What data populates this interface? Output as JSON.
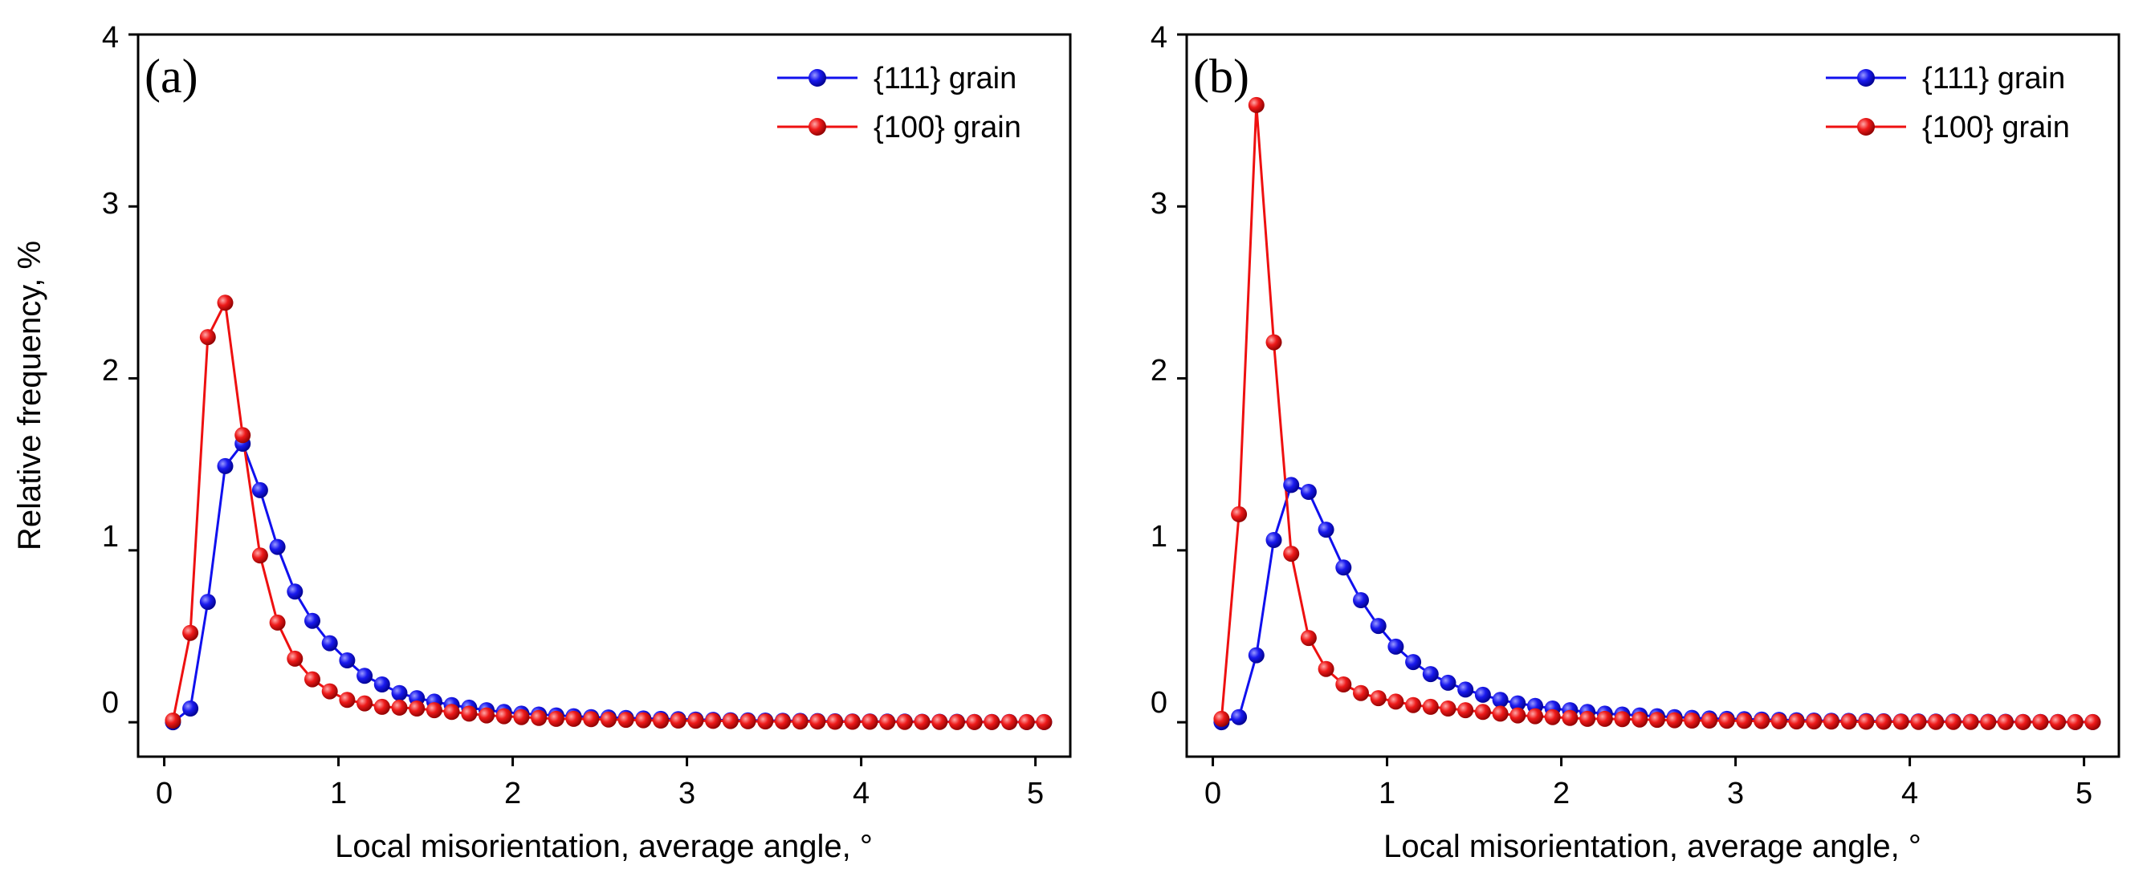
{
  "colors": {
    "series_111": "#1010ee",
    "series_100": "#ee1010",
    "axis": "#000000"
  },
  "chart_data": [
    {
      "type": "line",
      "panel_label": "(a)",
      "xlabel": "Local misorientation, average angle, °",
      "ylabel": "Relative frequency, %",
      "xlim": [
        -0.15,
        5.2
      ],
      "ylim": [
        -0.2,
        4
      ],
      "xticks": [
        "0",
        "1",
        "2",
        "3",
        "4",
        "5"
      ],
      "yticks": [
        "0",
        "1",
        "2",
        "3",
        "4"
      ],
      "legend_position": "top-right",
      "x": [
        0.05,
        0.15,
        0.25,
        0.35,
        0.45,
        0.55,
        0.65,
        0.75,
        0.85,
        0.95,
        1.05,
        1.15,
        1.25,
        1.35,
        1.45,
        1.55,
        1.65,
        1.75,
        1.85,
        1.95,
        2.05,
        2.15,
        2.25,
        2.35,
        2.45,
        2.55,
        2.65,
        2.75,
        2.85,
        2.95,
        3.05,
        3.15,
        3.25,
        3.35,
        3.45,
        3.55,
        3.65,
        3.75,
        3.85,
        3.95,
        4.05,
        4.15,
        4.25,
        4.35,
        4.45,
        4.55,
        4.65,
        4.75,
        4.85,
        4.95,
        5.05
      ],
      "series": [
        {
          "name": "{111} grain",
          "color": "#1010ee",
          "values": [
            0.0,
            0.08,
            0.7,
            1.49,
            1.62,
            1.35,
            1.02,
            0.76,
            0.59,
            0.46,
            0.36,
            0.27,
            0.22,
            0.17,
            0.14,
            0.12,
            0.1,
            0.085,
            0.07,
            0.06,
            0.05,
            0.045,
            0.04,
            0.035,
            0.03,
            0.028,
            0.025,
            0.022,
            0.02,
            0.018,
            0.016,
            0.014,
            0.012,
            0.011,
            0.01,
            0.009,
            0.008,
            0.007,
            0.006,
            0.005,
            0.005,
            0.004,
            0.004,
            0.003,
            0.003,
            0.003,
            0.002,
            0.002,
            0.002,
            0.001,
            0.001
          ]
        },
        {
          "name": "{100} grain",
          "color": "#ee1010",
          "values": [
            0.01,
            0.52,
            2.24,
            2.44,
            1.67,
            0.97,
            0.58,
            0.37,
            0.25,
            0.18,
            0.13,
            0.11,
            0.09,
            0.085,
            0.08,
            0.07,
            0.06,
            0.05,
            0.04,
            0.035,
            0.03,
            0.025,
            0.02,
            0.02,
            0.018,
            0.016,
            0.014,
            0.012,
            0.01,
            0.01,
            0.009,
            0.008,
            0.007,
            0.006,
            0.005,
            0.005,
            0.004,
            0.004,
            0.003,
            0.003,
            0.003,
            0.002,
            0.002,
            0.002,
            0.002,
            0.001,
            0.001,
            0.001,
            0.001,
            0.001,
            0.001
          ]
        }
      ]
    },
    {
      "type": "line",
      "panel_label": "(b)",
      "xlabel": "Local misorientation, average angle, °",
      "ylabel": "",
      "xlim": [
        -0.15,
        5.2
      ],
      "ylim": [
        -0.2,
        4
      ],
      "xticks": [
        "0",
        "1",
        "2",
        "3",
        "4",
        "5"
      ],
      "yticks": [
        "0",
        "1",
        "2",
        "3",
        "4"
      ],
      "legend_position": "top-right",
      "x": [
        0.05,
        0.15,
        0.25,
        0.35,
        0.45,
        0.55,
        0.65,
        0.75,
        0.85,
        0.95,
        1.05,
        1.15,
        1.25,
        1.35,
        1.45,
        1.55,
        1.65,
        1.75,
        1.85,
        1.95,
        2.05,
        2.15,
        2.25,
        2.35,
        2.45,
        2.55,
        2.65,
        2.75,
        2.85,
        2.95,
        3.05,
        3.15,
        3.25,
        3.35,
        3.45,
        3.55,
        3.65,
        3.75,
        3.85,
        3.95,
        4.05,
        4.15,
        4.25,
        4.35,
        4.45,
        4.55,
        4.65,
        4.75,
        4.85,
        4.95,
        5.05
      ],
      "series": [
        {
          "name": "{111} grain",
          "color": "#1010ee",
          "values": [
            0.0,
            0.03,
            0.39,
            1.06,
            1.38,
            1.34,
            1.12,
            0.9,
            0.71,
            0.56,
            0.44,
            0.35,
            0.28,
            0.23,
            0.19,
            0.16,
            0.13,
            0.11,
            0.095,
            0.08,
            0.07,
            0.06,
            0.05,
            0.045,
            0.04,
            0.035,
            0.03,
            0.026,
            0.022,
            0.02,
            0.018,
            0.016,
            0.014,
            0.012,
            0.01,
            0.009,
            0.008,
            0.007,
            0.006,
            0.005,
            0.005,
            0.004,
            0.004,
            0.003,
            0.003,
            0.003,
            0.002,
            0.002,
            0.002,
            0.001,
            0.001
          ]
        },
        {
          "name": "{100} grain",
          "color": "#ee1010",
          "values": [
            0.02,
            1.21,
            3.59,
            2.21,
            0.98,
            0.49,
            0.31,
            0.22,
            0.17,
            0.14,
            0.12,
            0.1,
            0.09,
            0.08,
            0.07,
            0.06,
            0.05,
            0.04,
            0.035,
            0.03,
            0.025,
            0.02,
            0.02,
            0.018,
            0.016,
            0.014,
            0.012,
            0.01,
            0.01,
            0.009,
            0.008,
            0.007,
            0.006,
            0.005,
            0.005,
            0.004,
            0.004,
            0.003,
            0.003,
            0.003,
            0.002,
            0.002,
            0.002,
            0.002,
            0.001,
            0.001,
            0.001,
            0.001,
            0.001,
            0.001,
            0.001
          ]
        }
      ]
    }
  ]
}
